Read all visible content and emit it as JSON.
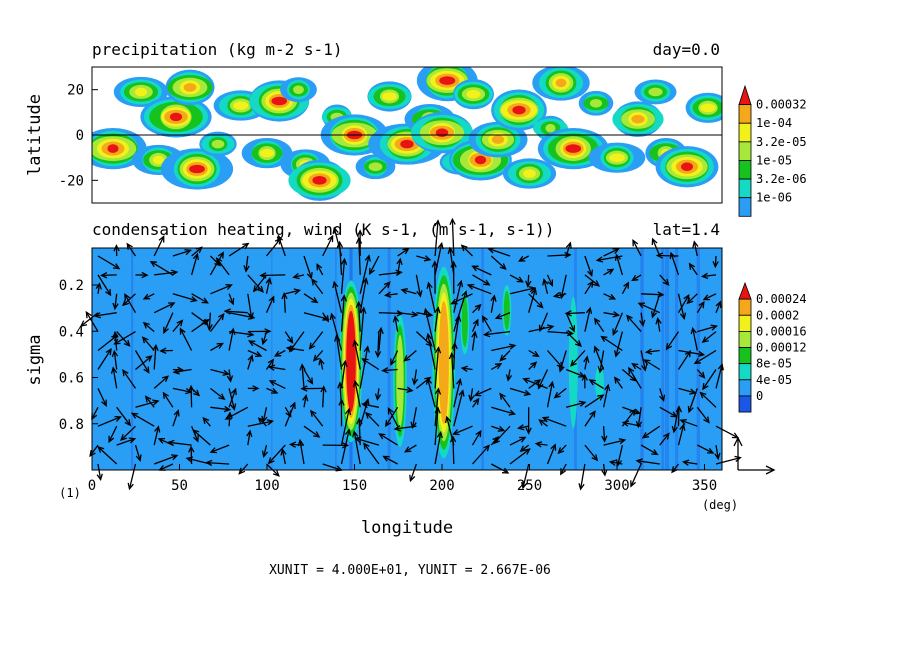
{
  "chart_data": [
    {
      "type": "heatmap",
      "title": "precipitation (kg m-2 s-1)",
      "title_right": "day=0.0",
      "xlabel": "",
      "ylabel": "latitude",
      "xlim": [
        0,
        360
      ],
      "ylim": [
        -30,
        30
      ],
      "yticks": [
        20,
        0,
        -20
      ],
      "ytick_labels": [
        "20",
        "0",
        "-20"
      ],
      "zero_line": true,
      "colorbar": {
        "labels": [
          "1e-06",
          "3.2e-06",
          "1e-05",
          "3.2e-05",
          "1e-04",
          "0.00032"
        ],
        "colors": [
          "#2a9df4",
          "#14d9c4",
          "#16c21e",
          "#a8e83a",
          "#f2f21a",
          "#f4a81a",
          "#e81414"
        ]
      },
      "peaks": [
        {
          "x": 12,
          "y": -6,
          "level": 6
        },
        {
          "x": 28,
          "y": 19,
          "level": 4
        },
        {
          "x": 38,
          "y": -11,
          "level": 4
        },
        {
          "x": 48,
          "y": 8,
          "level": 6
        },
        {
          "x": 56,
          "y": 21,
          "level": 5
        },
        {
          "x": 60,
          "y": -15,
          "level": 6
        },
        {
          "x": 72,
          "y": -4,
          "level": 3
        },
        {
          "x": 85,
          "y": 13,
          "level": 4
        },
        {
          "x": 100,
          "y": -8,
          "level": 4
        },
        {
          "x": 107,
          "y": 15,
          "level": 6
        },
        {
          "x": 118,
          "y": 20,
          "level": 3
        },
        {
          "x": 122,
          "y": -13,
          "level": 4
        },
        {
          "x": 130,
          "y": -20,
          "level": 6
        },
        {
          "x": 140,
          "y": 8,
          "level": 3
        },
        {
          "x": 150,
          "y": 0,
          "level": 6
        },
        {
          "x": 162,
          "y": -14,
          "level": 3
        },
        {
          "x": 170,
          "y": 17,
          "level": 4
        },
        {
          "x": 180,
          "y": -4,
          "level": 6
        },
        {
          "x": 193,
          "y": 7,
          "level": 4
        },
        {
          "x": 200,
          "y": 1,
          "level": 6
        },
        {
          "x": 203,
          "y": 24,
          "level": 6
        },
        {
          "x": 210,
          "y": -12,
          "level": 3
        },
        {
          "x": 218,
          "y": 18,
          "level": 4
        },
        {
          "x": 222,
          "y": -11,
          "level": 6
        },
        {
          "x": 232,
          "y": -2,
          "level": 5
        },
        {
          "x": 244,
          "y": 11,
          "level": 6
        },
        {
          "x": 250,
          "y": -17,
          "level": 4
        },
        {
          "x": 262,
          "y": 3,
          "level": 3
        },
        {
          "x": 268,
          "y": 23,
          "level": 5
        },
        {
          "x": 275,
          "y": -6,
          "level": 6
        },
        {
          "x": 288,
          "y": 14,
          "level": 3
        },
        {
          "x": 300,
          "y": -10,
          "level": 4
        },
        {
          "x": 312,
          "y": 7,
          "level": 5
        },
        {
          "x": 322,
          "y": 19,
          "level": 3
        },
        {
          "x": 328,
          "y": -8,
          "level": 4
        },
        {
          "x": 340,
          "y": -14,
          "level": 6
        },
        {
          "x": 352,
          "y": 12,
          "level": 4
        }
      ]
    },
    {
      "type": "heatmap",
      "title": "condensation heating, wind (K s-1, (m s-1, s-1))",
      "title_right": "lat=1.4",
      "xlabel": "longitude",
      "ylabel": "sigma",
      "xlim": [
        0,
        360
      ],
      "ylim": [
        1.0,
        0.04
      ],
      "xticks": [
        0,
        50,
        100,
        150,
        200,
        250,
        300,
        350
      ],
      "xtick_labels": [
        "0",
        "50",
        "100",
        "150",
        "200",
        "250",
        "300",
        "350"
      ],
      "x_unit_label": "(deg)",
      "yticks": [
        0.2,
        0.4,
        0.6,
        0.8
      ],
      "ytick_labels": [
        "0.2",
        "0.4",
        "0.6",
        "0.8"
      ],
      "corner_label": "(1)",
      "background_level": 1,
      "colorbar": {
        "labels": [
          "0",
          "4e-05",
          "8e-05",
          "0.00012",
          "0.00016",
          "0.0002",
          "0.00024"
        ],
        "colors": [
          "#1a56e8",
          "#2a9df4",
          "#14d9c4",
          "#16c21e",
          "#a8e83a",
          "#f2f21a",
          "#f4a81a",
          "#e81414"
        ]
      },
      "plumes": [
        {
          "x": 148,
          "top": 0.18,
          "bottom": 0.88,
          "halfwidth": 5,
          "level": 7
        },
        {
          "x": 176,
          "top": 0.33,
          "bottom": 0.9,
          "halfwidth": 3,
          "level": 4
        },
        {
          "x": 201,
          "top": 0.12,
          "bottom": 0.95,
          "halfwidth": 5,
          "level": 6
        },
        {
          "x": 213,
          "top": 0.22,
          "bottom": 0.5,
          "halfwidth": 2,
          "level": 3
        },
        {
          "x": 237,
          "top": 0.2,
          "bottom": 0.42,
          "halfwidth": 2,
          "level": 3
        },
        {
          "x": 275,
          "top": 0.25,
          "bottom": 0.82,
          "halfwidth": 2,
          "level": 2
        },
        {
          "x": 290,
          "top": 0.55,
          "bottom": 0.7,
          "halfwidth": 2,
          "level": 2
        }
      ],
      "wind": {
        "xunit_text": "XUNIT = 4.000E+01, YUNIT = 2.667E-06",
        "xunit": 40.0,
        "yunit": 2.667e-06
      }
    }
  ]
}
